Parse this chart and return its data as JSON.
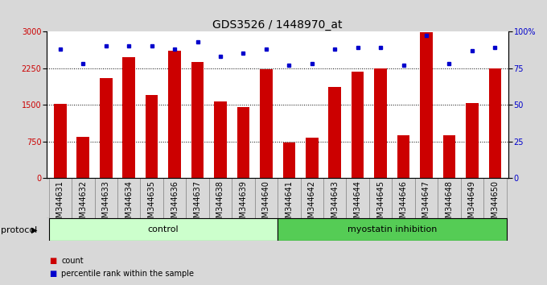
{
  "title": "GDS3526 / 1448970_at",
  "categories": [
    "GSM344631",
    "GSM344632",
    "GSM344633",
    "GSM344634",
    "GSM344635",
    "GSM344636",
    "GSM344637",
    "GSM344638",
    "GSM344639",
    "GSM344640",
    "GSM344641",
    "GSM344642",
    "GSM344643",
    "GSM344644",
    "GSM344645",
    "GSM344646",
    "GSM344647",
    "GSM344648",
    "GSM344649",
    "GSM344650"
  ],
  "bar_values": [
    1520,
    850,
    2050,
    2480,
    1700,
    2600,
    2380,
    1560,
    1460,
    2220,
    730,
    820,
    1870,
    2180,
    2250,
    880,
    2980,
    880,
    1540,
    2240
  ],
  "percentile_values": [
    88,
    78,
    90,
    90,
    90,
    88,
    93,
    83,
    85,
    88,
    77,
    78,
    88,
    89,
    89,
    77,
    97,
    78,
    87,
    89
  ],
  "bar_color": "#cc0000",
  "percentile_color": "#0000cc",
  "ylim_left": [
    0,
    3000
  ],
  "ylim_right": [
    0,
    100
  ],
  "yticks_left": [
    0,
    750,
    1500,
    2250,
    3000
  ],
  "yticks_right": [
    0,
    25,
    50,
    75,
    100
  ],
  "control_count": 10,
  "myostatin_count": 10,
  "group_labels": [
    "control",
    "myostatin inhibition"
  ],
  "control_color": "#ccffcc",
  "myostatin_color": "#55cc55",
  "protocol_label": "protocol",
  "legend_count_label": "count",
  "legend_percentile_label": "percentile rank within the sample",
  "background_color": "#d8d8d8",
  "plot_bg_color": "#ffffff",
  "title_fontsize": 10,
  "tick_fontsize": 7,
  "label_fontsize": 8
}
